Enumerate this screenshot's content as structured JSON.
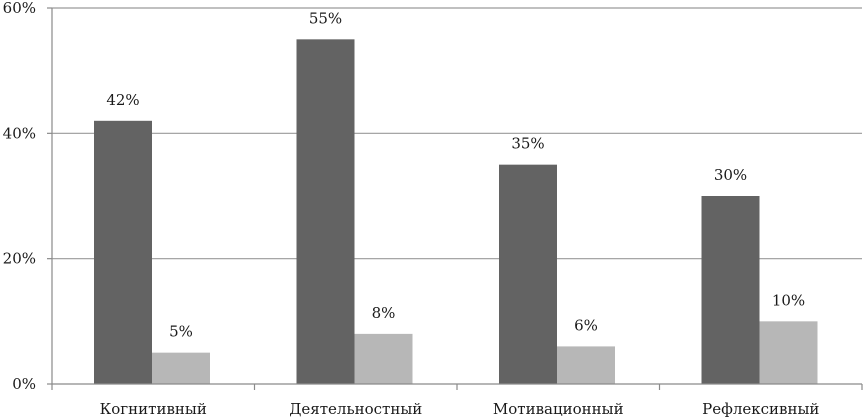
{
  "chart_data": {
    "type": "bar",
    "title": "",
    "xlabel": "",
    "ylabel": "",
    "categories": [
      "Когнитивный",
      "Деятельностный",
      "Мотивационный",
      "Рефлексивный"
    ],
    "series": [
      {
        "values": [
          42,
          55,
          35,
          30
        ],
        "labels": [
          "42%",
          "55%",
          "35%",
          "30%"
        ],
        "color": "#636363"
      },
      {
        "values": [
          5,
          8,
          6,
          10
        ],
        "labels": [
          "5%",
          "8%",
          "6%",
          "10%"
        ],
        "color": "#b7b7b7"
      }
    ],
    "ylim": [
      0,
      60
    ],
    "yticks": [
      0,
      20,
      40,
      60
    ],
    "ytick_labels": [
      "0%",
      "20%",
      "40%",
      "60%"
    ],
    "grid": true,
    "legend": "none",
    "colors": {
      "gridline": "#9a9a9a",
      "axis": "#8a8a8a"
    }
  }
}
